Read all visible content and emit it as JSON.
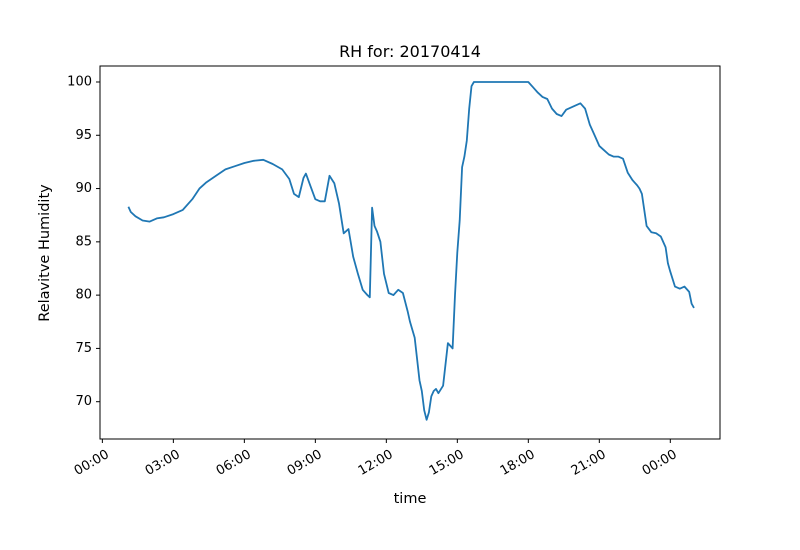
{
  "chart_data": {
    "type": "line",
    "title": "RH for: 20170414",
    "xlabel": "time",
    "ylabel": "Relavitve Humidity",
    "x_ticks": [
      "00:00",
      "03:00",
      "06:00",
      "09:00",
      "12:00",
      "15:00",
      "18:00",
      "21:00",
      "00:00"
    ],
    "x_tick_hours": [
      0,
      3,
      6,
      9,
      12,
      15,
      18,
      21,
      24
    ],
    "xlim_hours": [
      -0.1,
      26.1
    ],
    "y_ticks": [
      "70",
      "75",
      "80",
      "85",
      "90",
      "95",
      "100"
    ],
    "y_tick_values": [
      70,
      75,
      80,
      85,
      90,
      95,
      100
    ],
    "ylim": [
      66.5,
      101.5
    ],
    "grid": false,
    "series": [
      {
        "color": "#1f77b4",
        "x_hours": [
          1.1,
          1.2,
          1.4,
          1.7,
          2.0,
          2.3,
          2.6,
          3.0,
          3.4,
          3.8,
          4.1,
          4.4,
          4.8,
          5.2,
          5.6,
          6.0,
          6.4,
          6.8,
          7.2,
          7.6,
          7.9,
          8.1,
          8.3,
          8.5,
          8.6,
          8.8,
          9.0,
          9.2,
          9.4,
          9.6,
          9.8,
          10.0,
          10.2,
          10.4,
          10.6,
          10.8,
          11.0,
          11.2,
          11.3,
          11.4,
          11.5,
          11.6,
          11.75,
          11.9,
          12.1,
          12.3,
          12.5,
          12.7,
          12.9,
          13.0,
          13.2,
          13.4,
          13.5,
          13.6,
          13.7,
          13.8,
          13.9,
          14.0,
          14.1,
          14.2,
          14.4,
          14.6,
          14.8,
          14.9,
          15.0,
          15.1,
          15.2,
          15.3,
          15.4,
          15.5,
          15.6,
          15.7,
          15.8,
          15.9,
          16.0,
          16.2,
          16.5,
          17.0,
          17.5,
          18.0,
          18.2,
          18.4,
          18.6,
          18.8,
          19.0,
          19.2,
          19.4,
          19.6,
          19.8,
          20.0,
          20.2,
          20.4,
          20.6,
          20.8,
          21.0,
          21.2,
          21.4,
          21.6,
          21.8,
          22.0,
          22.2,
          22.4,
          22.6,
          22.7,
          22.8,
          23.0,
          23.2,
          23.4,
          23.6,
          23.8,
          23.9,
          24.0,
          24.2,
          24.4,
          24.6,
          24.8,
          24.9,
          25.0
        ],
        "y_values": [
          88.3,
          87.8,
          87.4,
          87.0,
          86.9,
          87.2,
          87.3,
          87.6,
          88.0,
          89.0,
          90.0,
          90.6,
          91.2,
          91.8,
          92.1,
          92.4,
          92.6,
          92.7,
          92.3,
          91.8,
          90.9,
          89.5,
          89.2,
          91.0,
          91.4,
          90.2,
          89.0,
          88.8,
          88.8,
          91.2,
          90.5,
          88.6,
          85.8,
          86.2,
          83.6,
          82.0,
          80.5,
          80.0,
          79.8,
          88.2,
          86.5,
          86.0,
          85.0,
          82.0,
          80.2,
          80.0,
          80.5,
          80.2,
          78.5,
          77.5,
          76.0,
          72.0,
          71.0,
          69.2,
          68.3,
          69.0,
          70.5,
          71.0,
          71.2,
          70.8,
          71.5,
          75.5,
          75.0,
          80.0,
          84.0,
          87.0,
          92.0,
          93.0,
          94.5,
          97.5,
          99.6,
          100.0,
          100.0,
          100.0,
          100.0,
          100.0,
          100.0,
          100.0,
          100.0,
          100.0,
          99.5,
          99.0,
          98.6,
          98.4,
          97.5,
          97.0,
          96.8,
          97.4,
          97.6,
          97.8,
          98.0,
          97.5,
          96.0,
          95.0,
          94.0,
          93.6,
          93.2,
          93.0,
          93.0,
          92.8,
          91.5,
          90.8,
          90.3,
          90.0,
          89.5,
          86.5,
          85.9,
          85.8,
          85.5,
          84.5,
          83.0,
          82.2,
          80.8,
          80.6,
          80.8,
          80.3,
          79.2,
          78.8
        ]
      }
    ]
  }
}
